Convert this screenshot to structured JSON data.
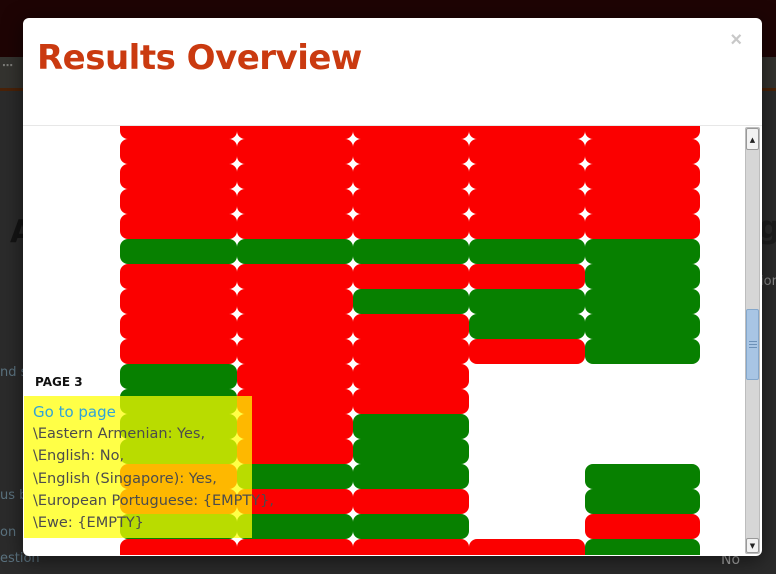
{
  "modal": {
    "title": "Results Overview",
    "close_label": "×"
  },
  "tooltip": {
    "page_label": "PAGE 3",
    "link_label": "Go to page",
    "lines": [
      "\\Eastern Armenian: Yes,",
      "\\English: No,",
      "\\English (Singapore): Yes,",
      "\\European Portuguese: {EMPTY},",
      "\\Ewe: {EMPTY}"
    ]
  },
  "results_grid": {
    "type": "heatmap",
    "columns": 5,
    "cell_states": {
      "R": "negative",
      "G": "positive",
      "_": "empty"
    },
    "colors": {
      "R": "#fb0000",
      "G": "#078000",
      "empty": "#ffffff"
    },
    "rows": [
      "RRRRR",
      "RRRRR",
      "RRRRR",
      "RRRRR",
      "RRRRR",
      "GGGGG",
      "RRRRG",
      "RRGGG",
      "RRRGG",
      "RRRRG",
      "GRR__",
      "GRR__",
      "GRG__",
      "GRG__",
      "RGG_G",
      "RRR_G",
      "GGG_R",
      "RRRRG"
    ]
  },
  "scrollbar": {
    "up_arrow": "▲",
    "down_arrow": "▼"
  },
  "background": {
    "toolbar_dots": "⋯",
    "heading_left_fragment": "A",
    "heading_right_fragment": "gu",
    "text_right_fragment": "ion",
    "link_fragment_1": "nd s",
    "link_fragment_2": "us b",
    "link_fragment_3": "on",
    "link_fragment_4": "estion",
    "answer_fragment": "No"
  }
}
